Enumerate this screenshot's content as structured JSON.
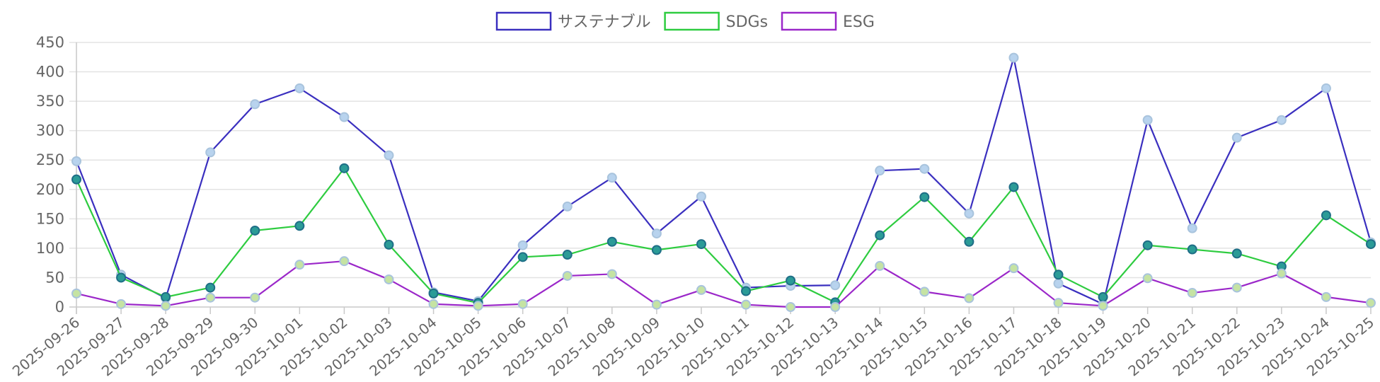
{
  "chart_data": {
    "type": "line",
    "categories": [
      "2025-09-26",
      "2025-09-27",
      "2025-09-28",
      "2025-09-29",
      "2025-09-30",
      "2025-10-01",
      "2025-10-02",
      "2025-10-03",
      "2025-10-04",
      "2025-10-05",
      "2025-10-06",
      "2025-10-07",
      "2025-10-08",
      "2025-10-09",
      "2025-10-10",
      "2025-10-11",
      "2025-10-12",
      "2025-10-13",
      "2025-10-14",
      "2025-10-15",
      "2025-10-16",
      "2025-10-17",
      "2025-10-18",
      "2025-10-19",
      "2025-10-20",
      "2025-10-21",
      "2025-10-22",
      "2025-10-23",
      "2025-10-24",
      "2025-10-25"
    ],
    "ylim": [
      0,
      450
    ],
    "yticks": [
      0,
      50,
      100,
      150,
      200,
      250,
      300,
      350,
      400,
      450
    ],
    "grid": true,
    "legend_position": "top-center",
    "series": [
      {
        "name": "サステナブル",
        "color": "#3a2fbf",
        "point_fill": "#b8d3ee",
        "values": [
          248,
          55,
          15,
          263,
          345,
          372,
          323,
          258,
          25,
          10,
          105,
          171,
          220,
          125,
          188,
          33,
          36,
          37,
          232,
          235,
          159,
          424,
          40,
          5,
          318,
          134,
          288,
          318,
          372,
          110
        ]
      },
      {
        "name": "SDGs",
        "color": "#2ecc40",
        "point_fill": "#2b9b97",
        "values": [
          217,
          50,
          17,
          33,
          130,
          138,
          236,
          106,
          23,
          7,
          85,
          89,
          111,
          97,
          107,
          27,
          45,
          8,
          122,
          187,
          111,
          204,
          55,
          17,
          105,
          98,
          91,
          69,
          156,
          107
        ]
      },
      {
        "name": "ESG",
        "color": "#9b27c9",
        "point_fill": "#c5e3a3",
        "values": [
          23,
          5,
          2,
          16,
          16,
          72,
          78,
          47,
          5,
          2,
          5,
          53,
          56,
          4,
          29,
          4,
          0,
          0,
          70,
          26,
          15,
          66,
          7,
          2,
          49,
          24,
          33,
          57,
          17,
          7
        ]
      }
    ]
  }
}
